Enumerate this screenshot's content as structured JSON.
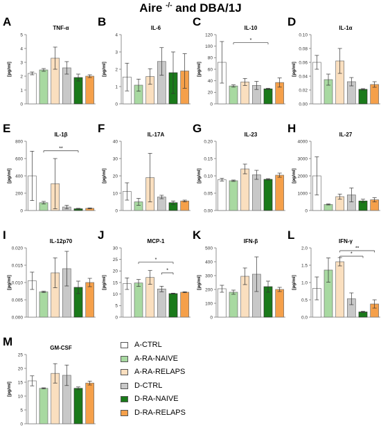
{
  "figure": {
    "title_main": "Aire ",
    "title_sup": "-/-",
    "title_tail": " and DBA/1J"
  },
  "groups": [
    {
      "label": "A-CTRL",
      "fill": "#ffffff",
      "stroke": "#707070"
    },
    {
      "label": "A-RA-NAIVE",
      "fill": "#a8d9a1",
      "stroke": "#707070"
    },
    {
      "label": "A-RA-RELAPS",
      "fill": "#fadfbf",
      "stroke": "#707070"
    },
    {
      "label": "D-CTRL",
      "fill": "#c8c8c8",
      "stroke": "#707070"
    },
    {
      "label": "D-RA-NAIVE",
      "fill": "#1a7a1a",
      "stroke": "#333333"
    },
    {
      "label": "D-RA-RELAPS",
      "fill": "#f5a04a",
      "stroke": "#707070"
    }
  ],
  "chart_data": [
    {
      "letter": "A",
      "type": "bar",
      "title": "TNF-α",
      "ylabel": "[pg/ml]",
      "ylim": [
        0,
        5
      ],
      "yticks": [
        "0",
        "1",
        "2",
        "3",
        "4",
        "5"
      ],
      "values": [
        2.2,
        2.45,
        3.3,
        2.6,
        1.9,
        2.0
      ],
      "errors": [
        0.1,
        0.1,
        0.8,
        0.45,
        0.25,
        0.1
      ],
      "significance": []
    },
    {
      "letter": "B",
      "type": "bar",
      "title": "IL-6",
      "ylabel": "[pg/ml]",
      "ylim": [
        0,
        4
      ],
      "yticks": [
        "0",
        "1",
        "2",
        "3",
        "4"
      ],
      "values": [
        1.55,
        1.08,
        1.58,
        2.45,
        1.8,
        1.9
      ],
      "errors": [
        0.8,
        0.35,
        0.45,
        0.8,
        1.2,
        1.0
      ],
      "significance": []
    },
    {
      "letter": "C",
      "type": "bar",
      "title": "IL-10",
      "ylabel": "[pg/ml]",
      "ylim": [
        0,
        120
      ],
      "yticks": [
        "0",
        "20",
        "40",
        "60",
        "80",
        "100",
        "120"
      ],
      "values": [
        72,
        31,
        38,
        32,
        26,
        37
      ],
      "errors": [
        36,
        2,
        6,
        7,
        1,
        8
      ],
      "significance": [
        {
          "from": 1,
          "to": 4,
          "label": "*",
          "level": 106
        }
      ]
    },
    {
      "letter": "D",
      "type": "bar",
      "title": "IL-1α",
      "ylabel": "[pg/ml]",
      "ylim": [
        0,
        0.1
      ],
      "yticks": [
        "0.00",
        "0.02",
        "0.04",
        "0.06",
        "0.08",
        "0.10"
      ],
      "values": [
        0.06,
        0.035,
        0.062,
        0.032,
        0.021,
        0.028
      ],
      "errors": [
        0.01,
        0.008,
        0.018,
        0.006,
        0.001,
        0.004
      ],
      "significance": []
    },
    {
      "letter": "E",
      "type": "bar",
      "title": "IL-1β",
      "ylabel": "[pg/ml]",
      "ylim": [
        0,
        800
      ],
      "yticks": [
        "0",
        "200",
        "400",
        "600",
        "800"
      ],
      "values": [
        400,
        90,
        310,
        40,
        20,
        25
      ],
      "errors": [
        285,
        15,
        290,
        20,
        5,
        5
      ],
      "significance": [
        {
          "from": 1,
          "to": 4,
          "label": "**",
          "level": 690
        }
      ]
    },
    {
      "letter": "F",
      "type": "bar",
      "title": "IL-17A",
      "ylabel": "[pg/ml]",
      "ylim": [
        0,
        40
      ],
      "yticks": [
        "0",
        "10",
        "20",
        "30",
        "40"
      ],
      "values": [
        11,
        5,
        19,
        7.8,
        4.5,
        5.5
      ],
      "errors": [
        5,
        2,
        14,
        1,
        1,
        0.5
      ],
      "significance": []
    },
    {
      "letter": "G",
      "type": "bar",
      "title": "IL-23",
      "ylabel": "[pg/ml]",
      "ylim": [
        0,
        0.2
      ],
      "yticks": [
        "0.00",
        "0.05",
        "0.10",
        "0.15",
        "0.20"
      ],
      "values": [
        0.089,
        0.086,
        0.12,
        0.103,
        0.09,
        0.102
      ],
      "errors": [
        0.004,
        0.002,
        0.014,
        0.013,
        0.002,
        0.006
      ],
      "significance": []
    },
    {
      "letter": "H",
      "type": "bar",
      "title": "IL-27",
      "ylabel": "[pg/ml]",
      "ylim": [
        0,
        4000
      ],
      "yticks": [
        "0",
        "1000",
        "2000",
        "3000",
        "4000"
      ],
      "values": [
        2000,
        350,
        800,
        900,
        550,
        620
      ],
      "errors": [
        1100,
        30,
        150,
        400,
        100,
        120
      ],
      "significance": []
    },
    {
      "letter": "I",
      "type": "bar",
      "title": "IL-12p70",
      "ylabel": "[pg/ml]",
      "ylim": [
        0,
        0.02
      ],
      "yticks": [
        "0.000",
        "0.005",
        "0.010",
        "0.015",
        "0.020"
      ],
      "values": [
        0.0105,
        0.0073,
        0.0128,
        0.014,
        0.0086,
        0.01
      ],
      "errors": [
        0.0025,
        0.0002,
        0.0043,
        0.005,
        0.0018,
        0.0012
      ],
      "significance": []
    },
    {
      "letter": "J",
      "type": "bar",
      "title": "MCP-1",
      "ylabel": "[pg/ml]",
      "ylim": [
        0,
        30
      ],
      "yticks": [
        "0",
        "5",
        "10",
        "15",
        "20",
        "25",
        "30"
      ],
      "values": [
        14.5,
        14.8,
        17.2,
        12.2,
        10.2,
        10.8
      ],
      "errors": [
        2.5,
        1.5,
        3.0,
        1.2,
        0.2,
        0.2
      ],
      "significance": [
        {
          "from": 1,
          "to": 4,
          "label": "*",
          "level": 23.8
        },
        {
          "from": 3,
          "to": 4,
          "label": "*",
          "level": 19.2
        }
      ]
    },
    {
      "letter": "K",
      "type": "bar",
      "title": "IFN-β",
      "ylabel": "[pg/ml]",
      "ylim": [
        0,
        500
      ],
      "yticks": [
        "0",
        "100",
        "200",
        "300",
        "400",
        "500"
      ],
      "values": [
        205,
        180,
        295,
        310,
        220,
        200
      ],
      "errors": [
        25,
        15,
        60,
        125,
        40,
        15
      ],
      "significance": []
    },
    {
      "letter": "L",
      "type": "bar",
      "title": "IFN-γ",
      "ylabel": "[pg/ml]",
      "ylim": [
        0,
        2.0
      ],
      "yticks": [
        "0.0",
        "0.5",
        "1.0",
        "1.5",
        "2.0"
      ],
      "values": [
        0.83,
        1.36,
        1.6,
        0.53,
        0.15,
        0.38
      ],
      "errors": [
        0.33,
        0.35,
        0.12,
        0.17,
        0.02,
        0.12
      ],
      "significance": [
        {
          "from": 2,
          "to": 4,
          "label": "*",
          "level": 1.76
        },
        {
          "from": 2,
          "to": 5,
          "label": "**",
          "level": 1.92
        }
      ]
    },
    {
      "letter": "M",
      "type": "bar",
      "title": "GM-CSF",
      "ylabel": "[pg/ml]",
      "ylim": [
        0,
        25
      ],
      "yticks": [
        "0",
        "5",
        "10",
        "15",
        "20",
        "25"
      ],
      "values": [
        15.5,
        12.8,
        18.2,
        17.5,
        12.8,
        14.7
      ],
      "errors": [
        1.8,
        0.2,
        3.5,
        3.7,
        0.5,
        0.7
      ],
      "significance": []
    }
  ]
}
